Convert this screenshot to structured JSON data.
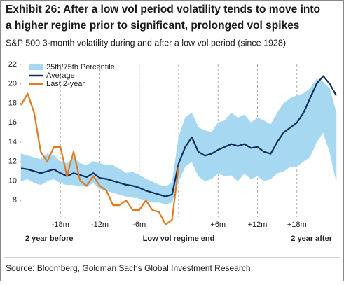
{
  "chart_data": {
    "type": "line",
    "title": "Exhibit 26: After a low vol period volatility tends to move into a higher regime prior to significant, prolonged vol spikes",
    "subtitle": "S&P 500 3-month volatility during and after a low vol period (since 1928)",
    "source": "Source: Bloomberg, Goldman Sachs Global Investment Research",
    "x": [
      -24,
      -23,
      -22,
      -21,
      -20,
      -19,
      -18,
      -17,
      -16,
      -15,
      -14,
      -13,
      -12,
      -11,
      -10,
      -9,
      -8,
      -7,
      -6,
      -5,
      -4,
      -3,
      -2,
      -1,
      0,
      1,
      2,
      3,
      4,
      5,
      6,
      7,
      8,
      9,
      10,
      11,
      12,
      13,
      14,
      15,
      16,
      17,
      18,
      19,
      20,
      21,
      22,
      23,
      24
    ],
    "xlim": [
      -24,
      24
    ],
    "xticks": [
      {
        "value": -18,
        "label": "-18m"
      },
      {
        "value": -12,
        "label": "-12m"
      },
      {
        "value": -6,
        "label": "-6m"
      },
      {
        "value": 0,
        "label": ""
      },
      {
        "value": 6,
        "label": "+6m"
      },
      {
        "value": 12,
        "label": "+12m"
      },
      {
        "value": 18,
        "label": "+18m"
      }
    ],
    "xlabels_row2": [
      {
        "value": -24,
        "label": "2 year before"
      },
      {
        "value": 0,
        "label": "Low vol regime end"
      },
      {
        "value": 24,
        "label": "2 year after"
      }
    ],
    "ylim": [
      7,
      22
    ],
    "yticks": [
      8,
      10,
      12,
      14,
      16,
      18,
      20,
      22
    ],
    "legend": "upper left",
    "series": [
      {
        "name": "25th/75th Percentile",
        "color": "#a6d8f2",
        "kind": "band",
        "low": [
          10.0,
          10.2,
          9.8,
          9.6,
          10.0,
          10.2,
          9.8,
          9.6,
          9.6,
          9.5,
          9.4,
          9.8,
          9.2,
          9.0,
          8.8,
          8.6,
          8.4,
          8.3,
          8.2,
          8.0,
          7.8,
          7.8,
          7.6,
          7.8,
          10.0,
          11.5,
          12.0,
          10.5,
          10.0,
          10.2,
          10.8,
          10.5,
          10.6,
          10.0,
          10.8,
          10.2,
          10.5,
          10.0,
          10.2,
          10.8,
          11.0,
          11.5,
          11.5,
          12.0,
          12.5,
          14.0,
          15.0,
          13.0,
          10.0
        ],
        "high": [
          12.8,
          12.6,
          12.4,
          12.2,
          12.8,
          12.6,
          12.0,
          11.8,
          12.4,
          11.8,
          11.6,
          12.0,
          11.8,
          11.6,
          11.6,
          11.2,
          10.8,
          10.9,
          10.6,
          10.2,
          9.9,
          9.6,
          9.4,
          9.8,
          14.5,
          16.5,
          17.0,
          15.5,
          15.2,
          15.0,
          16.0,
          16.2,
          17.0,
          16.5,
          16.8,
          16.0,
          16.5,
          16.2,
          15.8,
          17.0,
          18.0,
          18.5,
          18.8,
          19.0,
          19.5,
          20.5,
          20.2,
          19.5,
          17.0
        ]
      },
      {
        "name": "Average",
        "color": "#0f2d5c",
        "values": [
          11.3,
          11.2,
          11.0,
          10.8,
          11.0,
          11.2,
          10.8,
          10.5,
          10.8,
          10.6,
          10.4,
          10.8,
          10.3,
          10.2,
          10.0,
          9.8,
          9.6,
          9.5,
          9.3,
          9.0,
          8.8,
          8.6,
          8.4,
          8.6,
          11.8,
          13.5,
          14.5,
          13.0,
          12.6,
          12.8,
          13.2,
          13.5,
          13.8,
          13.6,
          13.8,
          13.4,
          13.5,
          13.0,
          12.8,
          14.0,
          15.0,
          15.5,
          16.0,
          17.0,
          18.5,
          20.0,
          20.8,
          20.0,
          18.8
        ]
      },
      {
        "name": "Last 2-year",
        "color": "#e07b22",
        "values": [
          17.8,
          19.0,
          17.0,
          13.0,
          12.0,
          13.5,
          13.5,
          10.5,
          13.0,
          10.0,
          9.5,
          10.5,
          9.5,
          9.0,
          7.5,
          7.5,
          8.0,
          7.0,
          7.0,
          8.0,
          7.0,
          6.8,
          5.5,
          6.0,
          11.5,
          null,
          null,
          null,
          null,
          null,
          null,
          null,
          null,
          null,
          null,
          null,
          null,
          null,
          null,
          null,
          null,
          null,
          null,
          null,
          null,
          null,
          null,
          null,
          null
        ]
      }
    ]
  }
}
